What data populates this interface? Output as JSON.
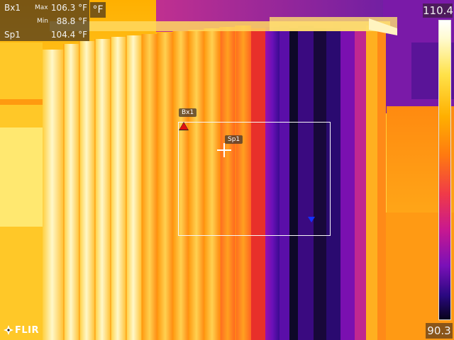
{
  "measurements": {
    "box_label": "Bx1",
    "max_label": "Max",
    "max_value": "106.3 °F",
    "min_label": "Min",
    "min_value": "88.8 °F",
    "spot_label": "Sp1",
    "spot_value": "104.4 °F"
  },
  "unit": "°F",
  "scale": {
    "max": "110.4",
    "min": "90.3"
  },
  "overlay": {
    "box_tag": "Bx1",
    "spot_tag": "Sp1"
  },
  "brand": {
    "logo_text": "FLIR"
  },
  "colors": {
    "max_marker": "#e01010",
    "min_marker": "#1430ff"
  },
  "icons": {
    "logo": "flir-logo-icon",
    "spot": "crosshair-icon",
    "max": "hot-spot-triangle-icon",
    "min": "cold-spot-triangle-icon"
  }
}
